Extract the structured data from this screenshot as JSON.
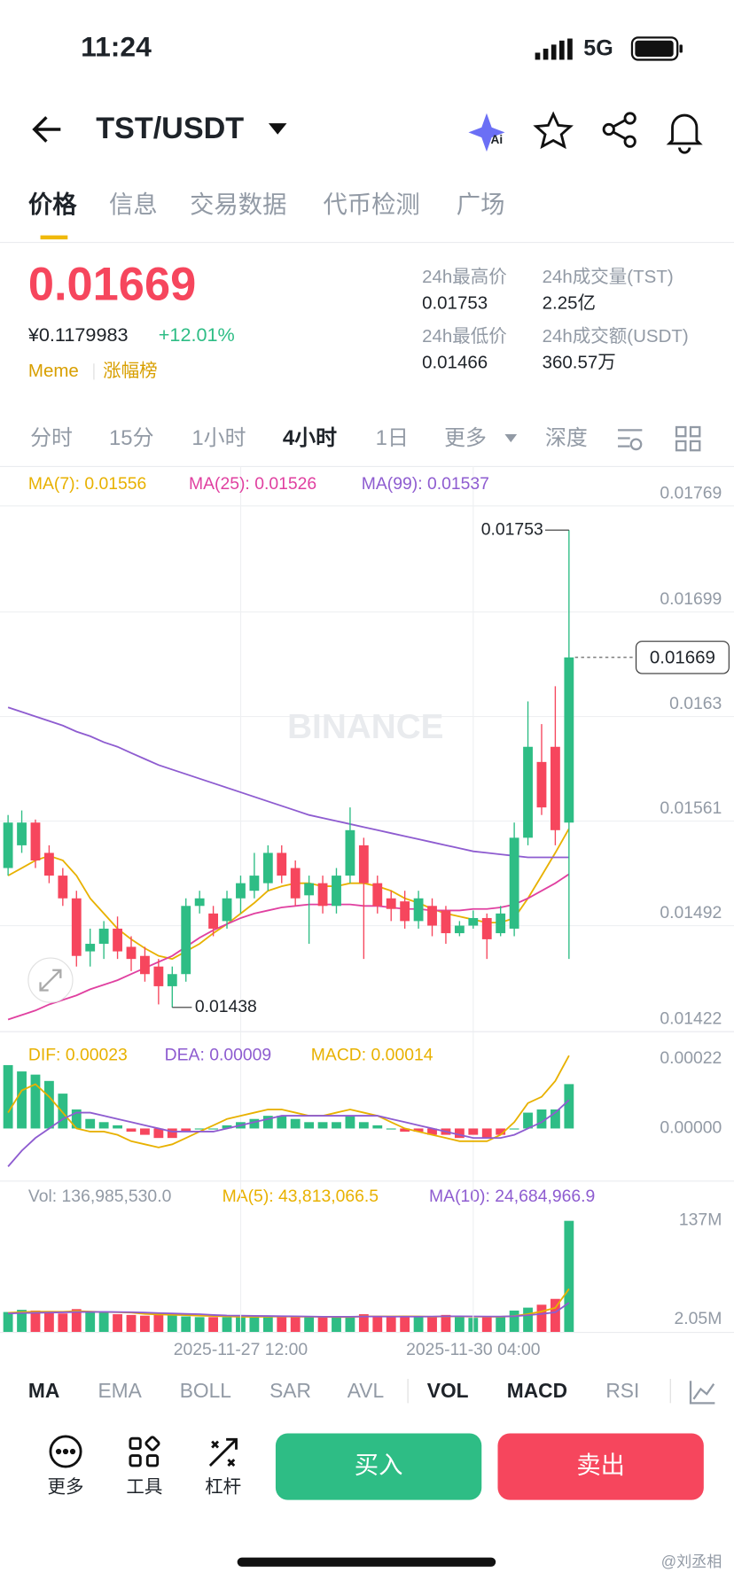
{
  "status": {
    "time": "11:24",
    "network": "5G"
  },
  "nav": {
    "pair": "TST/USDT"
  },
  "tabs": [
    "价格",
    "信息",
    "交易数据",
    "代币检测",
    "广场"
  ],
  "ticker": {
    "price": "0.01669",
    "cny": "¥0.1179983",
    "change": "+12.01%",
    "tag": "Meme",
    "rank": "涨幅榜"
  },
  "stats": [
    {
      "label": "24h最高价",
      "value": "0.01753"
    },
    {
      "label": "24h成交量(TST)",
      "value": "2.25亿"
    },
    {
      "label": "24h最低价",
      "value": "0.01466"
    },
    {
      "label": "24h成交额(USDT)",
      "value": "360.57万"
    }
  ],
  "intervals": [
    "分时",
    "15分",
    "1小时",
    "4小时",
    "1日",
    "更多",
    "深度"
  ],
  "indicators": [
    "MA",
    "EMA",
    "BOLL",
    "SAR",
    "AVL",
    "VOL",
    "MACD",
    "RSI"
  ],
  "actions": {
    "more": "更多",
    "tools": "工具",
    "leverage": "杠杆",
    "buy": "买入",
    "sell": "卖出"
  },
  "user_mark": "@刘丞相",
  "chart_data": [
    {
      "type": "candlestick",
      "watermark": "BINANCE",
      "up_color": "#2ebd85",
      "down_color": "#f6465d",
      "grid": true,
      "ylim": [
        0.01422,
        0.01795
      ],
      "yticks": [
        0.01769,
        0.01699,
        0.0163,
        0.01561,
        0.01492,
        0.01422
      ],
      "open": [
        0.0153,
        0.01545,
        0.0156,
        0.0154,
        0.01525,
        0.0151,
        0.01475,
        0.0148,
        0.0149,
        0.01478,
        0.01472,
        0.01465,
        0.01452,
        0.0146,
        0.01505,
        0.015,
        0.01495,
        0.0151,
        0.01515,
        0.0152,
        0.0154,
        0.0153,
        0.01512,
        0.0152,
        0.01505,
        0.01525,
        0.01545,
        0.0152,
        0.0151,
        0.01508,
        0.01495,
        0.01505,
        0.01502,
        0.01487,
        0.01492,
        0.01497,
        0.01487,
        0.0149,
        0.0155,
        0.016,
        0.0161,
        0.0156
      ],
      "high": [
        0.01565,
        0.01568,
        0.01562,
        0.01545,
        0.0153,
        0.01515,
        0.0149,
        0.01495,
        0.01498,
        0.01485,
        0.01478,
        0.0147,
        0.01465,
        0.0151,
        0.01515,
        0.01505,
        0.01515,
        0.01525,
        0.0154,
        0.01545,
        0.01545,
        0.01535,
        0.01525,
        0.01525,
        0.0153,
        0.0157,
        0.0155,
        0.01525,
        0.01515,
        0.01515,
        0.01515,
        0.0151,
        0.01505,
        0.01495,
        0.01502,
        0.015,
        0.01505,
        0.0156,
        0.0164,
        0.01625,
        0.0165,
        0.01753
      ],
      "low": [
        0.01525,
        0.0154,
        0.0153,
        0.0152,
        0.01505,
        0.01465,
        0.01465,
        0.0147,
        0.0147,
        0.01462,
        0.01455,
        0.0144,
        0.01438,
        0.01455,
        0.015,
        0.01485,
        0.0149,
        0.015,
        0.0151,
        0.01515,
        0.0152,
        0.01505,
        0.0148,
        0.015,
        0.015,
        0.0152,
        0.0147,
        0.015,
        0.01495,
        0.0149,
        0.0149,
        0.01485,
        0.0148,
        0.01485,
        0.0149,
        0.0147,
        0.01485,
        0.01485,
        0.01545,
        0.01565,
        0.01545,
        0.0147
      ],
      "close": [
        0.0156,
        0.0156,
        0.01535,
        0.01525,
        0.0151,
        0.01472,
        0.0148,
        0.0149,
        0.01475,
        0.0147,
        0.0146,
        0.01452,
        0.0146,
        0.01505,
        0.0151,
        0.0149,
        0.0151,
        0.0152,
        0.01525,
        0.0154,
        0.01525,
        0.0151,
        0.0152,
        0.01505,
        0.01525,
        0.01555,
        0.0152,
        0.01505,
        0.01503,
        0.01495,
        0.0151,
        0.01492,
        0.01487,
        0.01492,
        0.01497,
        0.01483,
        0.015,
        0.0155,
        0.0161,
        0.0157,
        0.01555,
        0.01669
      ],
      "series": [
        {
          "label": "MA(7): 0.01556",
          "color": "#e8b100",
          "values": [
            0.01525,
            0.0153,
            0.01535,
            0.01538,
            0.01535,
            0.01525,
            0.0151,
            0.015,
            0.0149,
            0.01483,
            0.01477,
            0.01472,
            0.0147,
            0.01475,
            0.0148,
            0.01487,
            0.01493,
            0.015,
            0.01507,
            0.01515,
            0.01518,
            0.0152,
            0.0152,
            0.01518,
            0.01518,
            0.0152,
            0.0152,
            0.01518,
            0.01515,
            0.0151,
            0.01507,
            0.01503,
            0.015,
            0.01498,
            0.01496,
            0.01494,
            0.01494,
            0.01497,
            0.0151,
            0.01525,
            0.0154,
            0.01556
          ]
        },
        {
          "label": "MA(25): 0.01526",
          "color": "#e040a0",
          "values": [
            0.0143,
            0.01433,
            0.01436,
            0.0144,
            0.01443,
            0.01446,
            0.0145,
            0.01453,
            0.01456,
            0.0146,
            0.01464,
            0.01468,
            0.01472,
            0.01478,
            0.01484,
            0.01489,
            0.01493,
            0.01497,
            0.015,
            0.01502,
            0.01504,
            0.01505,
            0.01506,
            0.01506,
            0.01506,
            0.01506,
            0.01505,
            0.01505,
            0.01504,
            0.01503,
            0.01503,
            0.01502,
            0.01502,
            0.01502,
            0.01503,
            0.01503,
            0.01504,
            0.01506,
            0.0151,
            0.01515,
            0.0152,
            0.01526
          ]
        },
        {
          "label": "MA(99): 0.01537",
          "color": "#8e5cd0",
          "values": [
            0.01636,
            0.01633,
            0.0163,
            0.01627,
            0.01624,
            0.0162,
            0.01617,
            0.01613,
            0.0161,
            0.01606,
            0.01602,
            0.01598,
            0.01595,
            0.01592,
            0.01589,
            0.01586,
            0.01583,
            0.0158,
            0.01577,
            0.01574,
            0.01571,
            0.01568,
            0.01565,
            0.01563,
            0.01561,
            0.01559,
            0.01557,
            0.01555,
            0.01553,
            0.01551,
            0.01549,
            0.01547,
            0.01545,
            0.01543,
            0.01541,
            0.0154,
            0.01539,
            0.01538,
            0.01537,
            0.01537,
            0.01537,
            0.01537
          ]
        }
      ]
    },
    {
      "type": "macd",
      "legend": [
        "DIF: 0.00023",
        "DEA: 0.00009",
        "MACD: 0.00014"
      ],
      "up_color": "#2ebd85",
      "down_color": "#f6465d",
      "ylim": [
        -0.00015,
        0.00028
      ],
      "yticks": [
        0.00022,
        {
          "value": 0,
          "label": "0.00000"
        }
      ],
      "values": [
        0.0002,
        0.00018,
        0.00017,
        0.00015,
        0.00011,
        6e-05,
        3e-05,
        2e-05,
        1e-05,
        -1e-05,
        -2e-05,
        -3e-05,
        -3e-05,
        -1e-05,
        0,
        0,
        1e-05,
        2e-05,
        3e-05,
        4e-05,
        4e-05,
        3e-05,
        2e-05,
        2e-05,
        2e-05,
        4e-05,
        2e-05,
        1e-05,
        0,
        -1e-05,
        -1e-05,
        -2e-05,
        -2e-05,
        -3e-05,
        -2e-05,
        -3e-05,
        -2e-05,
        0,
        5e-05,
        6e-05,
        6e-05,
        0.00014
      ],
      "series": [
        {
          "color": "#e8b100",
          "values": [
            5e-05,
            0.00012,
            0.00014,
            0.0001,
            5e-05,
            0,
            -1e-05,
            -1e-05,
            -2e-05,
            -4e-05,
            -5e-05,
            -6e-05,
            -5e-05,
            -3e-05,
            -1e-05,
            1e-05,
            3e-05,
            4e-05,
            5e-05,
            6e-05,
            6e-05,
            5e-05,
            4e-05,
            4e-05,
            5e-05,
            6e-05,
            5e-05,
            4e-05,
            2e-05,
            0,
            -1e-05,
            -2e-05,
            -3e-05,
            -4e-05,
            -4e-05,
            -4e-05,
            -2e-05,
            2e-05,
            8e-05,
            0.0001,
            0.00015,
            0.00023
          ]
        },
        {
          "color": "#8e5cd0",
          "values": [
            -0.00012,
            -7e-05,
            -3e-05,
            0,
            3e-05,
            5e-05,
            5e-05,
            4e-05,
            3e-05,
            2e-05,
            1e-05,
            0,
            -1e-05,
            -1e-05,
            -1e-05,
            -1e-05,
            0,
            1e-05,
            2e-05,
            3e-05,
            4e-05,
            4e-05,
            4e-05,
            4e-05,
            4e-05,
            4e-05,
            4e-05,
            4e-05,
            3e-05,
            2e-05,
            1e-05,
            0,
            -1e-05,
            -2e-05,
            -3e-05,
            -3e-05,
            -3e-05,
            -2e-05,
            0,
            2e-05,
            5e-05,
            9e-05
          ]
        }
      ]
    },
    {
      "type": "bar",
      "legend": [
        "Vol: 136,985,530.0",
        "MA(5): 43,813,066.5",
        "MA(10): 24,684,966.9"
      ],
      "ylim": [
        -16000000,
        150000000
      ],
      "yticks": [
        {
          "value": 137000000,
          "label": "137M"
        },
        {
          "value": 2050000,
          "label": "2.05M"
        }
      ],
      "categories": [
        null,
        null,
        null,
        null,
        null,
        null,
        null,
        null,
        null,
        null,
        null,
        null,
        null,
        null,
        null,
        null,
        null,
        "2025-11-27 12:00",
        null,
        null,
        null,
        null,
        null,
        null,
        null,
        null,
        null,
        null,
        null,
        null,
        null,
        null,
        null,
        null,
        "2025-11-30 04:00",
        null,
        null,
        null,
        null,
        null,
        null,
        null
      ],
      "values": [
        12000000,
        15000000,
        14000000,
        11000000,
        10000000,
        16000000,
        12000000,
        11000000,
        9000000,
        8000000,
        7000000,
        8000000,
        9000000,
        6000000,
        5000000,
        5000000,
        5000000,
        6000000,
        6000000,
        6000000,
        6000000,
        5000000,
        5000000,
        5000000,
        5000000,
        6000000,
        9000000,
        5000000,
        5000000,
        6000000,
        5000000,
        6000000,
        8000000,
        5000000,
        4000000,
        5000000,
        5000000,
        14000000,
        18000000,
        22000000,
        30000000,
        136985530
      ],
      "series": [
        {
          "color": "#e8b100",
          "values": [
            11000000,
            12000000,
            12500000,
            12500000,
            12400000,
            13200000,
            12600000,
            12000000,
            11600000,
            11200000,
            9400000,
            8600000,
            8200000,
            7600000,
            7000000,
            6600000,
            6000000,
            5400000,
            5400000,
            5600000,
            5800000,
            5600000,
            5600000,
            5400000,
            5200000,
            5200000,
            6000000,
            6000000,
            6000000,
            6200000,
            6000000,
            5400000,
            6000000,
            6000000,
            5600000,
            5600000,
            5400000,
            6600000,
            9200000,
            12800000,
            17800000,
            43813066.5
          ]
        },
        {
          "color": "#8e5cd0",
          "values": [
            10000000,
            10500000,
            11000000,
            11200000,
            11500000,
            12000000,
            12100000,
            12200000,
            12000000,
            11800000,
            11300000,
            10600000,
            10000000,
            9500000,
            9000000,
            8000000,
            7300000,
            7000000,
            6700000,
            6500000,
            6300000,
            6100000,
            5800000,
            5600000,
            5600000,
            5600000,
            5900000,
            5800000,
            5700000,
            5700000,
            5700000,
            5800000,
            6100000,
            6100000,
            6000000,
            5900000,
            5800000,
            6300000,
            7600000,
            9300000,
            11700000,
            24684966.9
          ]
        }
      ]
    }
  ]
}
